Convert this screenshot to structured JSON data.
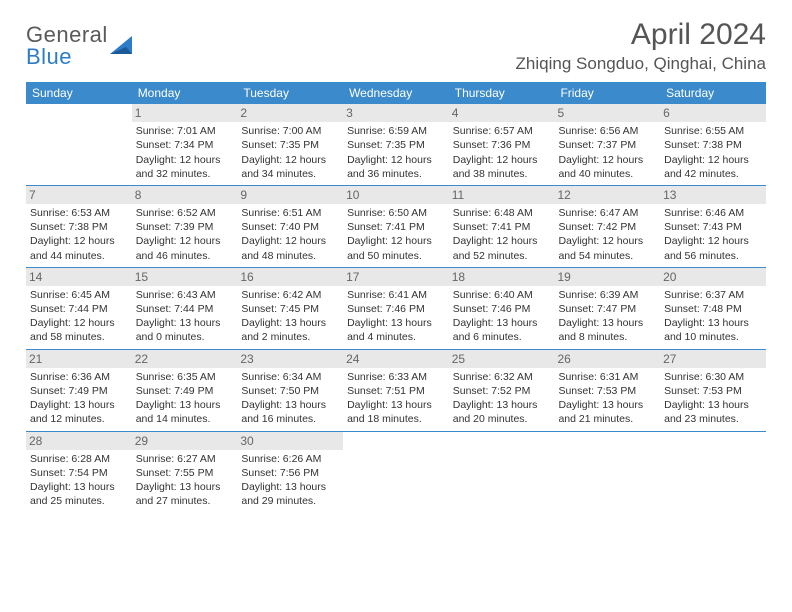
{
  "logo": {
    "text1": "General",
    "text2": "Blue"
  },
  "title": "April 2024",
  "location": "Zhiqing Songduo, Qinghai, China",
  "colors": {
    "header_bg": "#3b8acb",
    "header_text": "#ffffff",
    "daynum_bg": "#e8e8e8",
    "daynum_text": "#666666",
    "body_text": "#333333",
    "logo_gray": "#5a5a5a",
    "logo_blue": "#2e7cc8",
    "row_border": "#3b8acb"
  },
  "dow": [
    "Sunday",
    "Monday",
    "Tuesday",
    "Wednesday",
    "Thursday",
    "Friday",
    "Saturday"
  ],
  "weeks": [
    [
      {
        "n": "",
        "sr": "",
        "ss": "",
        "dl": ""
      },
      {
        "n": "1",
        "sr": "Sunrise: 7:01 AM",
        "ss": "Sunset: 7:34 PM",
        "dl": "Daylight: 12 hours and 32 minutes."
      },
      {
        "n": "2",
        "sr": "Sunrise: 7:00 AM",
        "ss": "Sunset: 7:35 PM",
        "dl": "Daylight: 12 hours and 34 minutes."
      },
      {
        "n": "3",
        "sr": "Sunrise: 6:59 AM",
        "ss": "Sunset: 7:35 PM",
        "dl": "Daylight: 12 hours and 36 minutes."
      },
      {
        "n": "4",
        "sr": "Sunrise: 6:57 AM",
        "ss": "Sunset: 7:36 PM",
        "dl": "Daylight: 12 hours and 38 minutes."
      },
      {
        "n": "5",
        "sr": "Sunrise: 6:56 AM",
        "ss": "Sunset: 7:37 PM",
        "dl": "Daylight: 12 hours and 40 minutes."
      },
      {
        "n": "6",
        "sr": "Sunrise: 6:55 AM",
        "ss": "Sunset: 7:38 PM",
        "dl": "Daylight: 12 hours and 42 minutes."
      }
    ],
    [
      {
        "n": "7",
        "sr": "Sunrise: 6:53 AM",
        "ss": "Sunset: 7:38 PM",
        "dl": "Daylight: 12 hours and 44 minutes."
      },
      {
        "n": "8",
        "sr": "Sunrise: 6:52 AM",
        "ss": "Sunset: 7:39 PM",
        "dl": "Daylight: 12 hours and 46 minutes."
      },
      {
        "n": "9",
        "sr": "Sunrise: 6:51 AM",
        "ss": "Sunset: 7:40 PM",
        "dl": "Daylight: 12 hours and 48 minutes."
      },
      {
        "n": "10",
        "sr": "Sunrise: 6:50 AM",
        "ss": "Sunset: 7:41 PM",
        "dl": "Daylight: 12 hours and 50 minutes."
      },
      {
        "n": "11",
        "sr": "Sunrise: 6:48 AM",
        "ss": "Sunset: 7:41 PM",
        "dl": "Daylight: 12 hours and 52 minutes."
      },
      {
        "n": "12",
        "sr": "Sunrise: 6:47 AM",
        "ss": "Sunset: 7:42 PM",
        "dl": "Daylight: 12 hours and 54 minutes."
      },
      {
        "n": "13",
        "sr": "Sunrise: 6:46 AM",
        "ss": "Sunset: 7:43 PM",
        "dl": "Daylight: 12 hours and 56 minutes."
      }
    ],
    [
      {
        "n": "14",
        "sr": "Sunrise: 6:45 AM",
        "ss": "Sunset: 7:44 PM",
        "dl": "Daylight: 12 hours and 58 minutes."
      },
      {
        "n": "15",
        "sr": "Sunrise: 6:43 AM",
        "ss": "Sunset: 7:44 PM",
        "dl": "Daylight: 13 hours and 0 minutes."
      },
      {
        "n": "16",
        "sr": "Sunrise: 6:42 AM",
        "ss": "Sunset: 7:45 PM",
        "dl": "Daylight: 13 hours and 2 minutes."
      },
      {
        "n": "17",
        "sr": "Sunrise: 6:41 AM",
        "ss": "Sunset: 7:46 PM",
        "dl": "Daylight: 13 hours and 4 minutes."
      },
      {
        "n": "18",
        "sr": "Sunrise: 6:40 AM",
        "ss": "Sunset: 7:46 PM",
        "dl": "Daylight: 13 hours and 6 minutes."
      },
      {
        "n": "19",
        "sr": "Sunrise: 6:39 AM",
        "ss": "Sunset: 7:47 PM",
        "dl": "Daylight: 13 hours and 8 minutes."
      },
      {
        "n": "20",
        "sr": "Sunrise: 6:37 AM",
        "ss": "Sunset: 7:48 PM",
        "dl": "Daylight: 13 hours and 10 minutes."
      }
    ],
    [
      {
        "n": "21",
        "sr": "Sunrise: 6:36 AM",
        "ss": "Sunset: 7:49 PM",
        "dl": "Daylight: 13 hours and 12 minutes."
      },
      {
        "n": "22",
        "sr": "Sunrise: 6:35 AM",
        "ss": "Sunset: 7:49 PM",
        "dl": "Daylight: 13 hours and 14 minutes."
      },
      {
        "n": "23",
        "sr": "Sunrise: 6:34 AM",
        "ss": "Sunset: 7:50 PM",
        "dl": "Daylight: 13 hours and 16 minutes."
      },
      {
        "n": "24",
        "sr": "Sunrise: 6:33 AM",
        "ss": "Sunset: 7:51 PM",
        "dl": "Daylight: 13 hours and 18 minutes."
      },
      {
        "n": "25",
        "sr": "Sunrise: 6:32 AM",
        "ss": "Sunset: 7:52 PM",
        "dl": "Daylight: 13 hours and 20 minutes."
      },
      {
        "n": "26",
        "sr": "Sunrise: 6:31 AM",
        "ss": "Sunset: 7:53 PM",
        "dl": "Daylight: 13 hours and 21 minutes."
      },
      {
        "n": "27",
        "sr": "Sunrise: 6:30 AM",
        "ss": "Sunset: 7:53 PM",
        "dl": "Daylight: 13 hours and 23 minutes."
      }
    ],
    [
      {
        "n": "28",
        "sr": "Sunrise: 6:28 AM",
        "ss": "Sunset: 7:54 PM",
        "dl": "Daylight: 13 hours and 25 minutes."
      },
      {
        "n": "29",
        "sr": "Sunrise: 6:27 AM",
        "ss": "Sunset: 7:55 PM",
        "dl": "Daylight: 13 hours and 27 minutes."
      },
      {
        "n": "30",
        "sr": "Sunrise: 6:26 AM",
        "ss": "Sunset: 7:56 PM",
        "dl": "Daylight: 13 hours and 29 minutes."
      },
      {
        "n": "",
        "sr": "",
        "ss": "",
        "dl": ""
      },
      {
        "n": "",
        "sr": "",
        "ss": "",
        "dl": ""
      },
      {
        "n": "",
        "sr": "",
        "ss": "",
        "dl": ""
      },
      {
        "n": "",
        "sr": "",
        "ss": "",
        "dl": ""
      }
    ]
  ]
}
